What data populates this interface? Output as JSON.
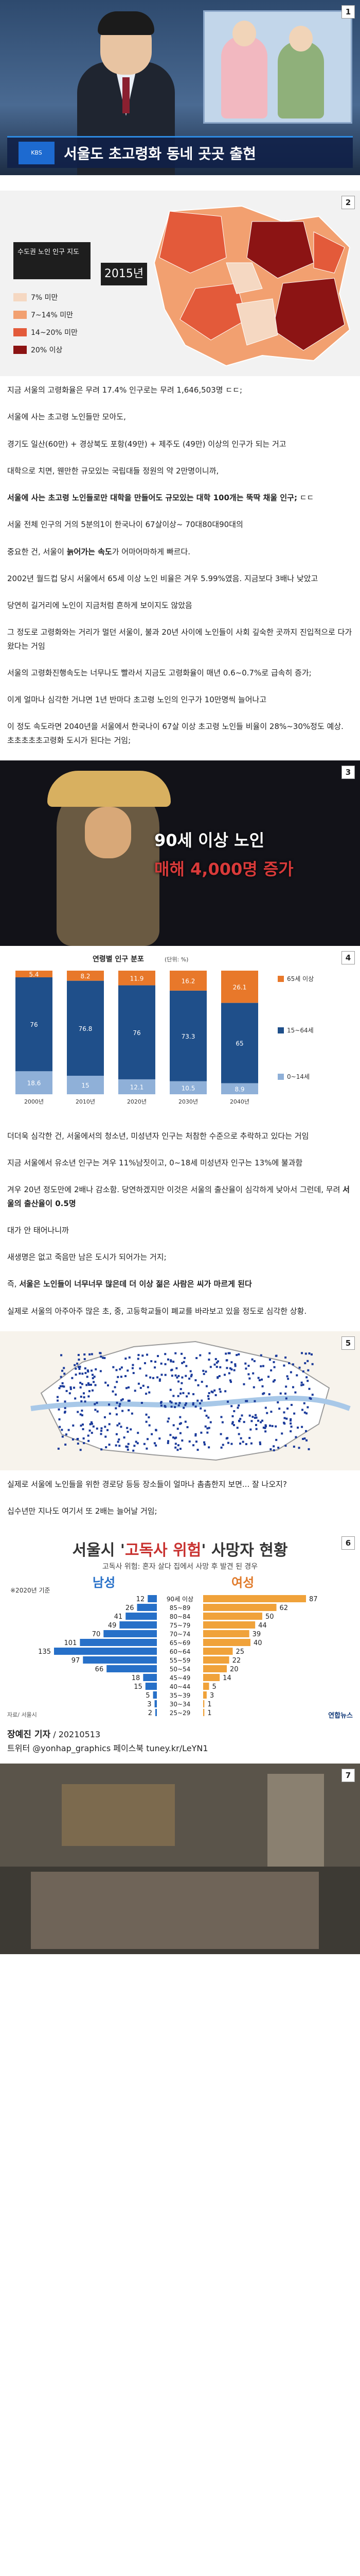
{
  "panels": {
    "p1": {
      "badge": "1",
      "headline": "서울도 초고령화 동네 곳곳 출현"
    },
    "p2": {
      "badge": "2",
      "map_title_line1": "수도권 노인 인구 지도",
      "year": "2015년",
      "legend": [
        {
          "label": "7% 미만",
          "color": "#f5d8c2"
        },
        {
          "label": "7~14% 미만",
          "color": "#f2a070"
        },
        {
          "label": "14~20% 미만",
          "color": "#e35a3a"
        },
        {
          "label": "20% 이상",
          "color": "#8c1414"
        }
      ]
    },
    "p3": {
      "badge": "3",
      "line1": "90세 이상 노인",
      "line2": "매해 4,000명 증가"
    },
    "p4": {
      "badge": "4"
    },
    "p5": {
      "badge": "5"
    },
    "p6": {
      "badge": "6",
      "title_prefix": "서울시 '",
      "title_red": "고독사 위험",
      "title_suffix": "' 사망자 현황",
      "subtitle": "고독사 위험: 혼자 살다 집에서 사망 후 발견 된 경우",
      "male": "남성",
      "female": "여성",
      "unit_note": "※2020년 기준",
      "source": "자료/ 서울시",
      "agency": "연합뉴스"
    },
    "p7": {
      "badge": "7"
    }
  },
  "chart_data": [
    {
      "type": "bar",
      "title": "연령별 인구 분포",
      "unit": "(단위: %)",
      "categories": [
        "2000년",
        "2010년",
        "2020년",
        "2030년",
        "2040년"
      ],
      "series": [
        {
          "name": "0~14세",
          "values": [
            18.6,
            15.0,
            12.1,
            10.5,
            8.9
          ]
        },
        {
          "name": "15~64세",
          "values": [
            76.0,
            76.8,
            76.0,
            73.3,
            65.0
          ]
        },
        {
          "name": "65세 이상",
          "values": [
            5.4,
            8.2,
            11.9,
            16.2,
            26.1
          ]
        }
      ],
      "ylim": [
        0,
        100
      ]
    },
    {
      "type": "bar",
      "title": "서울시 '고독사 위험' 사망자 현황",
      "categories": [
        "90세 이상",
        "85~89",
        "80~84",
        "75~79",
        "70~74",
        "65~69",
        "60~64",
        "55~59",
        "50~54",
        "45~49",
        "40~44",
        "35~39",
        "30~34",
        "25~29"
      ],
      "series": [
        {
          "name": "남성",
          "values": [
            12,
            26,
            41,
            49,
            70,
            101,
            135,
            97,
            66,
            18,
            15,
            5,
            3,
            2
          ]
        },
        {
          "name": "여성",
          "values": [
            87,
            62,
            50,
            44,
            39,
            40,
            25,
            22,
            20,
            14,
            5,
            3,
            1,
            1
          ]
        }
      ]
    }
  ],
  "text": {
    "t1": "지금 서울의 고령화율은 무려 17.4% 인구로는 무려 1,646,503명 ㄷㄷ;",
    "t2": "서울에 사는 초고령 노인들만 모아도,",
    "t3": "경기도 일산(60만) + 경상북도 포항(49만) + 제주도 (49만) 이상의 인구가 되는 거고",
    "t4": "대학으로 치면, 웬만한 규모있는 국립대들 정원의 약 2만명이니까,",
    "t5a": "서울에 사는 초고령 노인들로만 대학을 만들어도 규모있는 대학 100개는 뚝딱 채울 인구;",
    "t5b": " ㄷㄷ",
    "t6": "서울 전체 인구의 거의 5분의1이 한국나이 67살이상~ 70대80대90대의",
    "t7a": "중요한 건, 서울이 ",
    "t7b": "늙어가는 속도",
    "t7c": "가 어마어마하게 빠르다.",
    "t8": "2002년 월드컵 당시 서울에서 65세 이상 노인 비율은 겨우 5.99%였음. 지금보다 3배나 낮았고",
    "t9": "당연히 길거리에 노인이 지금처럼 흔하게 보이지도 않았음",
    "t10": "그 정도로 고령화와는 거리가 멀던 서울이, 불과 20년 사이에 노인들이 사회 깊숙한 곳까지 진입적으로 다가왔다는 거임",
    "t11": "서울의 고령화진행속도는 너무나도 빨라서 지금도 고령화율이 매년 0.6~0.7%로 급속히 증가;",
    "t12": "이게 얼마나 심각한 거냐면 1년 반마다 초고령 노인의 인구가 10만명씩 늘어나고",
    "t13": "이 정도 속도라면 2040년을 서울에서 한국나이 67살 이상 초고령 노인들 비율이 28%~30%정도 예상. 초초초초초고령화 도시가 된다는 거임;",
    "t14": "더더욱 심각한 건, 서울에서의 청소년, 미성년자 인구는 처참한 수준으로 추락하고 있다는 거임",
    "t15": "지금 서울에서 유소년 인구는 겨우 11%남짓이고, 0~18세 미성년자 인구는 13%에 불과함",
    "t16a": "겨우 20년 정도만에 2배나 감소함. 당연하겠지만 이것은 서울의 출산율이 심각하게 낮아서 그런데, 무려 ",
    "t16b": "서울의 출산율이 0.5명",
    "t17": "대가 안 태어나니까",
    "t18": "새생명은 없고 죽음만 남은 도시가 되어가는 거지;",
    "t19a": "즉, ",
    "t19b": "서울은 노인들이 너무너무 많은데 더 이상 젊은 사람은 씨가 마르게 된다",
    "t20": "실제로 서울의 아주아주 많은 초, 중, 고등학교들이 폐교를 바라보고 있을 정도로 심각한 상황.",
    "t21": "실제로 서울에 노인들을 위한 경로당 등등 장소들이 얼마나 촘촘한지 보면... 잘 나오지?",
    "t22": "십수년만 지나도 여기서 또 2배는 늘어날 거임;",
    "credit_reporter": "장예진 기자",
    "credit_date": " / 20210513",
    "credit_twitter": "트위터 @yonhap_graphics  페이스북 tuney.kr/LeYN1"
  }
}
